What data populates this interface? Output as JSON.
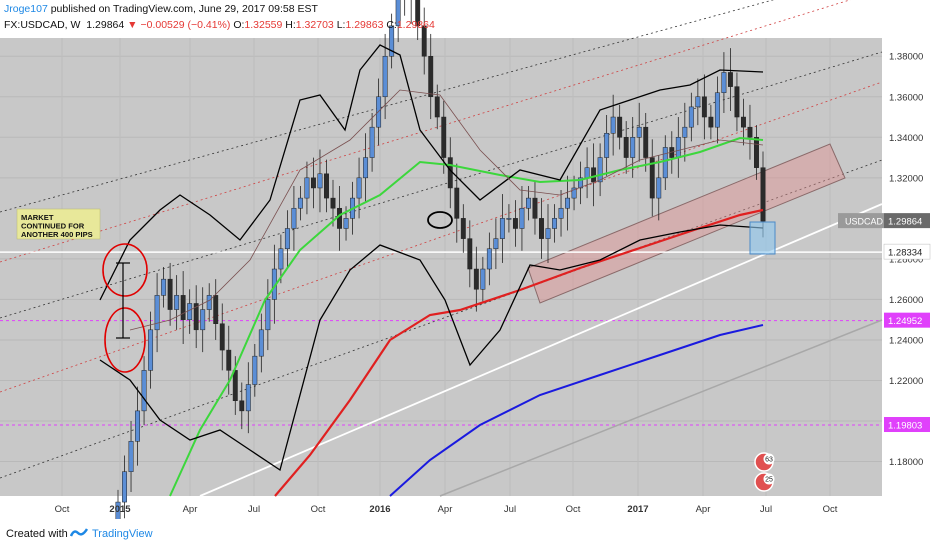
{
  "header": {
    "author": "Jroge107",
    "published": "published on TradingView.com, June 29, 2017 09:58 EST",
    "symbol": "FX:USDCAD, W",
    "last": "1.29864",
    "change": "−0.00529 (−0.41%)",
    "o_label": "O:",
    "o": "1.32559",
    "h_label": "H:",
    "h": "1.32703",
    "l_label": "L:",
    "l": "1.29863",
    "c_label": "C:",
    "c": "1.29864"
  },
  "footer": {
    "created": "Created with",
    "brand": "TradingView"
  },
  "colors": {
    "background": "#c8c8c8",
    "up": "#5b8ed6",
    "down": "#2b2b2b",
    "ma_green": "#3cd73c",
    "ma_red": "#e02020",
    "ma_blue": "#1a1adf",
    "bollinger": "#000000",
    "white_line": "#ffffff",
    "price_label_magenta": "#e040fb",
    "channel_fill": "#e09090"
  },
  "chart_data": {
    "type": "candlestick",
    "symbol": "USDCAD",
    "timeframe": "W",
    "x_ticks": [
      "Oct",
      "2015",
      "Apr",
      "Jul",
      "Oct",
      "2016",
      "Apr",
      "Jul",
      "Oct",
      "2017",
      "Apr",
      "Jul",
      "Oct"
    ],
    "y_ticks": [
      "1.18000",
      "1.20000",
      "1.22000",
      "1.24000",
      "1.26000",
      "1.28000",
      "1.32000",
      "1.34000",
      "1.36000",
      "1.38000"
    ],
    "ylim": [
      1.163,
      1.389
    ],
    "price_labels": [
      {
        "text": "USDCAD",
        "value": "1.29864"
      },
      {
        "text": "",
        "value": "1.28334"
      },
      {
        "text": "",
        "value": "1.24952"
      },
      {
        "text": "",
        "value": "1.19803"
      }
    ],
    "horizontal_lines": [
      {
        "value": 1.28334,
        "style": "solid",
        "color": "#ffffff"
      },
      {
        "value": 1.24952,
        "style": "dashed",
        "color": "#e040fb"
      },
      {
        "value": 1.19803,
        "style": "dashed",
        "color": "#e040fb"
      }
    ],
    "annotation": {
      "text": [
        "MARKET",
        "CONTINUED FOR",
        "ANOTHER 400 PIPS"
      ]
    },
    "event_badges": [
      "63",
      "25"
    ],
    "close_series": [
      1.16,
      1.175,
      1.19,
      1.205,
      1.225,
      1.245,
      1.262,
      1.27,
      1.255,
      1.262,
      1.25,
      1.258,
      1.245,
      1.255,
      1.262,
      1.248,
      1.235,
      1.225,
      1.21,
      1.205,
      1.218,
      1.232,
      1.245,
      1.26,
      1.275,
      1.285,
      1.295,
      1.305,
      1.31,
      1.32,
      1.315,
      1.322,
      1.31,
      1.305,
      1.295,
      1.3,
      1.31,
      1.32,
      1.33,
      1.345,
      1.36,
      1.38,
      1.395,
      1.41,
      1.42,
      1.408,
      1.395,
      1.38,
      1.36,
      1.35,
      1.33,
      1.315,
      1.3,
      1.29,
      1.275,
      1.265,
      1.275,
      1.285,
      1.29,
      1.3,
      1.3,
      1.295,
      1.305,
      1.31,
      1.3,
      1.29,
      1.295,
      1.3,
      1.305,
      1.31,
      1.315,
      1.32,
      1.325,
      1.318,
      1.33,
      1.342,
      1.35,
      1.34,
      1.33,
      1.34,
      1.345,
      1.33,
      1.31,
      1.32,
      1.335,
      1.33,
      1.34,
      1.345,
      1.355,
      1.36,
      1.35,
      1.345,
      1.362,
      1.372,
      1.365,
      1.35,
      1.345,
      1.34,
      1.325,
      1.29864
    ]
  }
}
